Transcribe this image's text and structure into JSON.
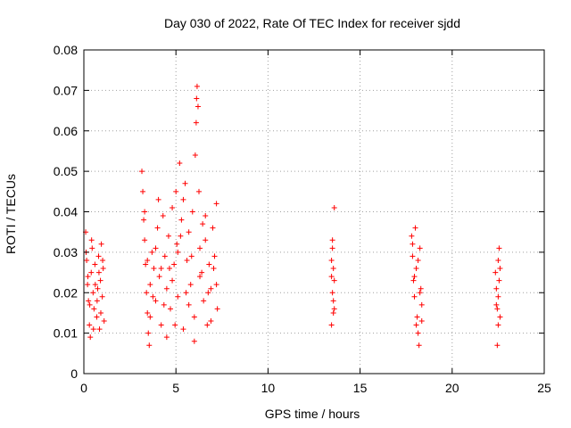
{
  "chart_data": {
    "type": "scatter",
    "title": "Day 030 of 2022, Rate Of TEC Index for receiver sjdd",
    "xlabel": "GPS time / hours",
    "ylabel": "ROTI / TECUs",
    "xlim": [
      0,
      25
    ],
    "ylim": [
      0,
      0.08
    ],
    "xticks": [
      0,
      5,
      10,
      15,
      20,
      25
    ],
    "xtick_labels": [
      "0",
      "5",
      "10",
      "15",
      "20",
      "25"
    ],
    "yticks": [
      0,
      0.01,
      0.02,
      0.03,
      0.04,
      0.05,
      0.06,
      0.07,
      0.08
    ],
    "ytick_labels": [
      "0",
      "0.01",
      "0.02",
      "0.03",
      "0.04",
      "0.05",
      "0.06",
      "0.07",
      "0.08"
    ],
    "grid": true,
    "marker": "+",
    "color": "#ff0000",
    "series": [
      {
        "name": "ROTI",
        "points": [
          [
            0.1,
            0.035
          ],
          [
            0.15,
            0.028
          ],
          [
            0.2,
            0.022
          ],
          [
            0.25,
            0.018
          ],
          [
            0.3,
            0.012
          ],
          [
            0.35,
            0.009
          ],
          [
            0.4,
            0.025
          ],
          [
            0.45,
            0.031
          ],
          [
            0.5,
            0.02
          ],
          [
            0.55,
            0.016
          ],
          [
            0.6,
            0.027
          ],
          [
            0.7,
            0.014
          ],
          [
            0.75,
            0.021
          ],
          [
            0.8,
            0.029
          ],
          [
            0.85,
            0.011
          ],
          [
            0.9,
            0.023
          ],
          [
            0.95,
            0.032
          ],
          [
            1.0,
            0.019
          ],
          [
            1.05,
            0.026
          ],
          [
            1.1,
            0.013
          ],
          [
            0.12,
            0.03
          ],
          [
            0.22,
            0.024
          ],
          [
            0.32,
            0.017
          ],
          [
            0.42,
            0.033
          ],
          [
            0.52,
            0.011
          ],
          [
            0.62,
            0.022
          ],
          [
            0.72,
            0.018
          ],
          [
            0.82,
            0.025
          ],
          [
            0.92,
            0.015
          ],
          [
            1.02,
            0.028
          ],
          [
            3.15,
            0.05
          ],
          [
            3.2,
            0.045
          ],
          [
            3.25,
            0.038
          ],
          [
            3.3,
            0.033
          ],
          [
            3.35,
            0.027
          ],
          [
            3.4,
            0.02
          ],
          [
            3.45,
            0.015
          ],
          [
            3.5,
            0.01
          ],
          [
            3.55,
            0.007
          ],
          [
            3.6,
            0.022
          ],
          [
            3.7,
            0.03
          ],
          [
            3.8,
            0.026
          ],
          [
            3.9,
            0.018
          ],
          [
            4.0,
            0.036
          ],
          [
            4.1,
            0.024
          ],
          [
            4.2,
            0.012
          ],
          [
            4.3,
            0.039
          ],
          [
            4.4,
            0.029
          ],
          [
            4.5,
            0.021
          ],
          [
            4.6,
            0.034
          ],
          [
            4.7,
            0.016
          ],
          [
            4.8,
            0.041
          ],
          [
            4.9,
            0.027
          ],
          [
            5.0,
            0.045
          ],
          [
            5.05,
            0.032
          ],
          [
            5.1,
            0.019
          ],
          [
            5.2,
            0.052
          ],
          [
            5.3,
            0.038
          ],
          [
            5.4,
            0.011
          ],
          [
            5.5,
            0.047
          ],
          [
            5.6,
            0.028
          ],
          [
            5.7,
            0.035
          ],
          [
            5.8,
            0.022
          ],
          [
            5.9,
            0.04
          ],
          [
            6.0,
            0.014
          ],
          [
            6.05,
            0.054
          ],
          [
            6.1,
            0.062
          ],
          [
            6.12,
            0.068
          ],
          [
            6.15,
            0.071
          ],
          [
            6.2,
            0.066
          ],
          [
            6.25,
            0.045
          ],
          [
            6.3,
            0.031
          ],
          [
            6.4,
            0.025
          ],
          [
            6.5,
            0.018
          ],
          [
            6.6,
            0.033
          ],
          [
            6.7,
            0.012
          ],
          [
            6.8,
            0.027
          ],
          [
            6.9,
            0.021
          ],
          [
            7.0,
            0.036
          ],
          [
            7.1,
            0.029
          ],
          [
            7.2,
            0.042
          ],
          [
            7.25,
            0.016
          ],
          [
            3.3,
            0.04
          ],
          [
            3.6,
            0.014
          ],
          [
            3.9,
            0.031
          ],
          [
            4.2,
            0.026
          ],
          [
            4.5,
            0.009
          ],
          [
            4.8,
            0.023
          ],
          [
            5.1,
            0.03
          ],
          [
            5.4,
            0.043
          ],
          [
            5.7,
            0.017
          ],
          [
            6.0,
            0.008
          ],
          [
            6.3,
            0.024
          ],
          [
            6.6,
            0.039
          ],
          [
            6.9,
            0.013
          ],
          [
            7.2,
            0.022
          ],
          [
            3.45,
            0.028
          ],
          [
            3.75,
            0.019
          ],
          [
            4.05,
            0.043
          ],
          [
            4.35,
            0.017
          ],
          [
            4.65,
            0.026
          ],
          [
            4.95,
            0.012
          ],
          [
            5.25,
            0.034
          ],
          [
            5.55,
            0.02
          ],
          [
            5.85,
            0.029
          ],
          [
            6.45,
            0.037
          ],
          [
            6.75,
            0.02
          ],
          [
            7.05,
            0.026
          ],
          [
            13.45,
            0.028
          ],
          [
            13.5,
            0.033
          ],
          [
            13.55,
            0.026
          ],
          [
            13.6,
            0.041
          ],
          [
            13.5,
            0.02
          ],
          [
            13.55,
            0.015
          ],
          [
            13.45,
            0.012
          ],
          [
            13.6,
            0.023
          ],
          [
            13.5,
            0.031
          ],
          [
            13.55,
            0.018
          ],
          [
            13.45,
            0.024
          ],
          [
            13.6,
            0.016
          ],
          [
            17.8,
            0.034
          ],
          [
            17.85,
            0.029
          ],
          [
            17.9,
            0.023
          ],
          [
            17.95,
            0.019
          ],
          [
            18.0,
            0.036
          ],
          [
            18.05,
            0.026
          ],
          [
            18.1,
            0.014
          ],
          [
            18.15,
            0.01
          ],
          [
            18.2,
            0.007
          ],
          [
            18.25,
            0.031
          ],
          [
            18.3,
            0.021
          ],
          [
            18.35,
            0.017
          ],
          [
            17.85,
            0.032
          ],
          [
            17.95,
            0.024
          ],
          [
            18.05,
            0.012
          ],
          [
            18.15,
            0.028
          ],
          [
            18.25,
            0.02
          ],
          [
            18.35,
            0.013
          ],
          [
            22.35,
            0.025
          ],
          [
            22.4,
            0.021
          ],
          [
            22.45,
            0.016
          ],
          [
            22.5,
            0.012
          ],
          [
            22.55,
            0.031
          ],
          [
            22.6,
            0.026
          ],
          [
            22.45,
            0.007
          ],
          [
            22.5,
            0.019
          ],
          [
            22.55,
            0.023
          ],
          [
            22.4,
            0.017
          ],
          [
            22.6,
            0.014
          ],
          [
            22.5,
            0.028
          ]
        ]
      }
    ]
  }
}
